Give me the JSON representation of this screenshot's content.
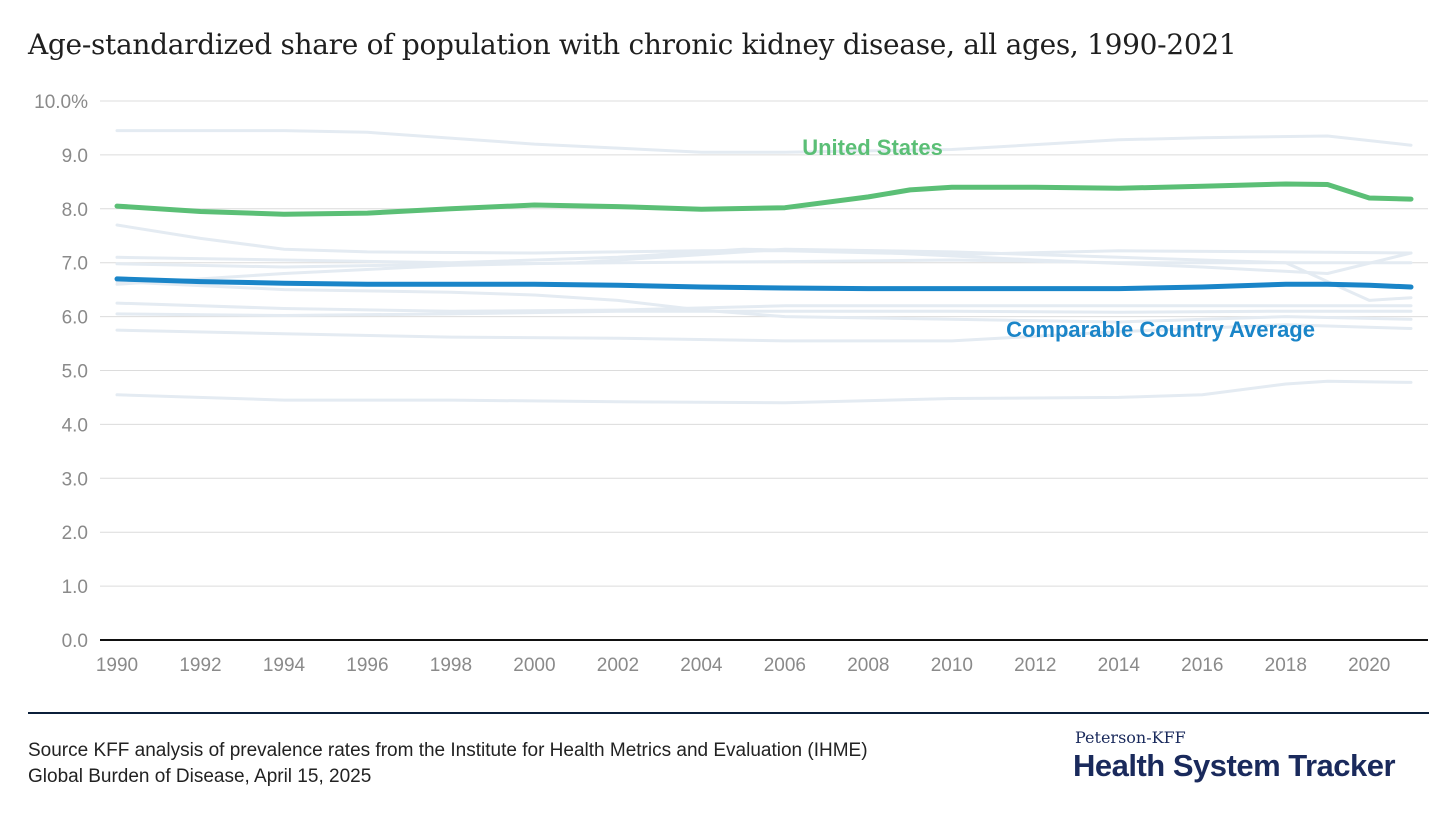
{
  "title": "Age-standardized share of population with chronic kidney disease, all ages, 1990-2021",
  "chart_data": {
    "type": "line",
    "xlim": [
      1990,
      2021
    ],
    "ylim": [
      0,
      10
    ],
    "grid": true,
    "x_ticks": [
      1990,
      1992,
      1994,
      1996,
      1998,
      2000,
      2002,
      2004,
      2006,
      2008,
      2010,
      2012,
      2014,
      2016,
      2018,
      2020
    ],
    "x_tick_labels": [
      "1990",
      "1992",
      "1994",
      "1996",
      "1998",
      "2000",
      "2002",
      "2004",
      "2006",
      "2008",
      "2010",
      "2012",
      "2014",
      "2016",
      "2018",
      "2020"
    ],
    "y_ticks": [
      0,
      1,
      2,
      3,
      4,
      5,
      6,
      7,
      8,
      9,
      10
    ],
    "y_tick_labels": [
      "0.0",
      "1.0",
      "2.0",
      "3.0",
      "4.0",
      "5.0",
      "6.0",
      "7.0",
      "8.0",
      "9.0",
      "10.0%"
    ],
    "series": [
      {
        "name": "United States",
        "color": "#5bbf76",
        "highlight": true,
        "x": [
          1990,
          1992,
          1994,
          1996,
          1998,
          2000,
          2002,
          2004,
          2006,
          2008,
          2009,
          2010,
          2012,
          2014,
          2016,
          2018,
          2019,
          2020,
          2021
        ],
        "y": [
          8.05,
          7.95,
          7.9,
          7.92,
          8.0,
          8.07,
          8.04,
          7.99,
          8.02,
          8.22,
          8.35,
          8.4,
          8.4,
          8.38,
          8.42,
          8.46,
          8.45,
          8.2,
          8.18
        ]
      },
      {
        "name": "Comparable Country Average",
        "color": "#1a85c8",
        "highlight": true,
        "x": [
          1990,
          1992,
          1994,
          1996,
          1998,
          2000,
          2002,
          2004,
          2006,
          2008,
          2010,
          2012,
          2014,
          2016,
          2018,
          2019,
          2020,
          2021
        ],
        "y": [
          6.7,
          6.65,
          6.62,
          6.6,
          6.6,
          6.6,
          6.58,
          6.55,
          6.53,
          6.52,
          6.52,
          6.52,
          6.52,
          6.55,
          6.6,
          6.6,
          6.58,
          6.55
        ]
      },
      {
        "color": "#e4ebf2",
        "x": [
          1990,
          1994,
          1996,
          2000,
          2004,
          2006,
          2010,
          2014,
          2016,
          2019,
          2021
        ],
        "y": [
          9.45,
          9.45,
          9.42,
          9.2,
          9.05,
          9.05,
          9.1,
          9.28,
          9.32,
          9.35,
          9.18
        ]
      },
      {
        "color": "#e4ebf2",
        "x": [
          1990,
          1992,
          1994,
          1996,
          2000,
          2004,
          2006,
          2010,
          2014,
          2018,
          2021
        ],
        "y": [
          7.7,
          7.45,
          7.25,
          7.2,
          7.18,
          7.22,
          7.22,
          7.15,
          7.22,
          7.2,
          7.18
        ]
      },
      {
        "color": "#e4ebf2",
        "x": [
          1990,
          1994,
          1998,
          2002,
          2005,
          2008,
          2012,
          2016,
          2019,
          2021
        ],
        "y": [
          7.1,
          7.05,
          7.0,
          7.1,
          7.25,
          7.2,
          7.05,
          6.92,
          6.8,
          7.18
        ]
      },
      {
        "color": "#e4ebf2",
        "x": [
          1990,
          1994,
          1998,
          2002,
          2006,
          2010,
          2014,
          2018,
          2021
        ],
        "y": [
          6.98,
          6.92,
          6.97,
          7.0,
          7.02,
          7.05,
          7.0,
          7.0,
          7.0
        ]
      },
      {
        "color": "#e4ebf2",
        "x": [
          1990,
          1994,
          1998,
          2001,
          2004,
          2006,
          2010,
          2014,
          2018,
          2020,
          2021
        ],
        "y": [
          6.6,
          6.8,
          6.95,
          7.0,
          7.15,
          7.25,
          7.2,
          7.1,
          7.0,
          6.3,
          6.35
        ]
      },
      {
        "color": "#e4ebf2",
        "x": [
          1990,
          1994,
          1998,
          2000,
          2002,
          2004,
          2006,
          2010,
          2014,
          2018,
          2021
        ],
        "y": [
          6.65,
          6.5,
          6.45,
          6.4,
          6.3,
          6.12,
          6.0,
          5.95,
          5.9,
          6.0,
          5.95
        ]
      },
      {
        "color": "#e4ebf2",
        "x": [
          1990,
          1994,
          1998,
          2002,
          2006,
          2010,
          2014,
          2018,
          2021
        ],
        "y": [
          6.25,
          6.15,
          6.1,
          6.12,
          6.2,
          6.2,
          6.2,
          6.2,
          6.2
        ]
      },
      {
        "color": "#e4ebf2",
        "x": [
          1990,
          1994,
          1998,
          2002,
          2006,
          2010,
          2014,
          2018,
          2021
        ],
        "y": [
          6.05,
          6.02,
          6.05,
          6.1,
          6.1,
          6.1,
          6.08,
          6.1,
          6.1
        ]
      },
      {
        "color": "#e4ebf2",
        "x": [
          1990,
          1994,
          1998,
          2002,
          2006,
          2008,
          2010,
          2014,
          2018,
          2021
        ],
        "y": [
          5.75,
          5.68,
          5.62,
          5.6,
          5.55,
          5.55,
          5.55,
          5.72,
          5.85,
          5.78
        ]
      },
      {
        "color": "#e4ebf2",
        "x": [
          1990,
          1994,
          1998,
          2002,
          2006,
          2010,
          2014,
          2016,
          2018,
          2019,
          2021
        ],
        "y": [
          4.55,
          4.45,
          4.45,
          4.42,
          4.4,
          4.48,
          4.5,
          4.55,
          4.75,
          4.8,
          4.78
        ]
      }
    ]
  },
  "source": {
    "line1": "Source KFF analysis of prevalence rates from the Institute for Health Metrics and Evaluation (IHME)",
    "line2": "Global Burden of Disease, April 15, 2025"
  },
  "brand": {
    "top": "Peterson-KFF",
    "main": "Health System Tracker"
  }
}
